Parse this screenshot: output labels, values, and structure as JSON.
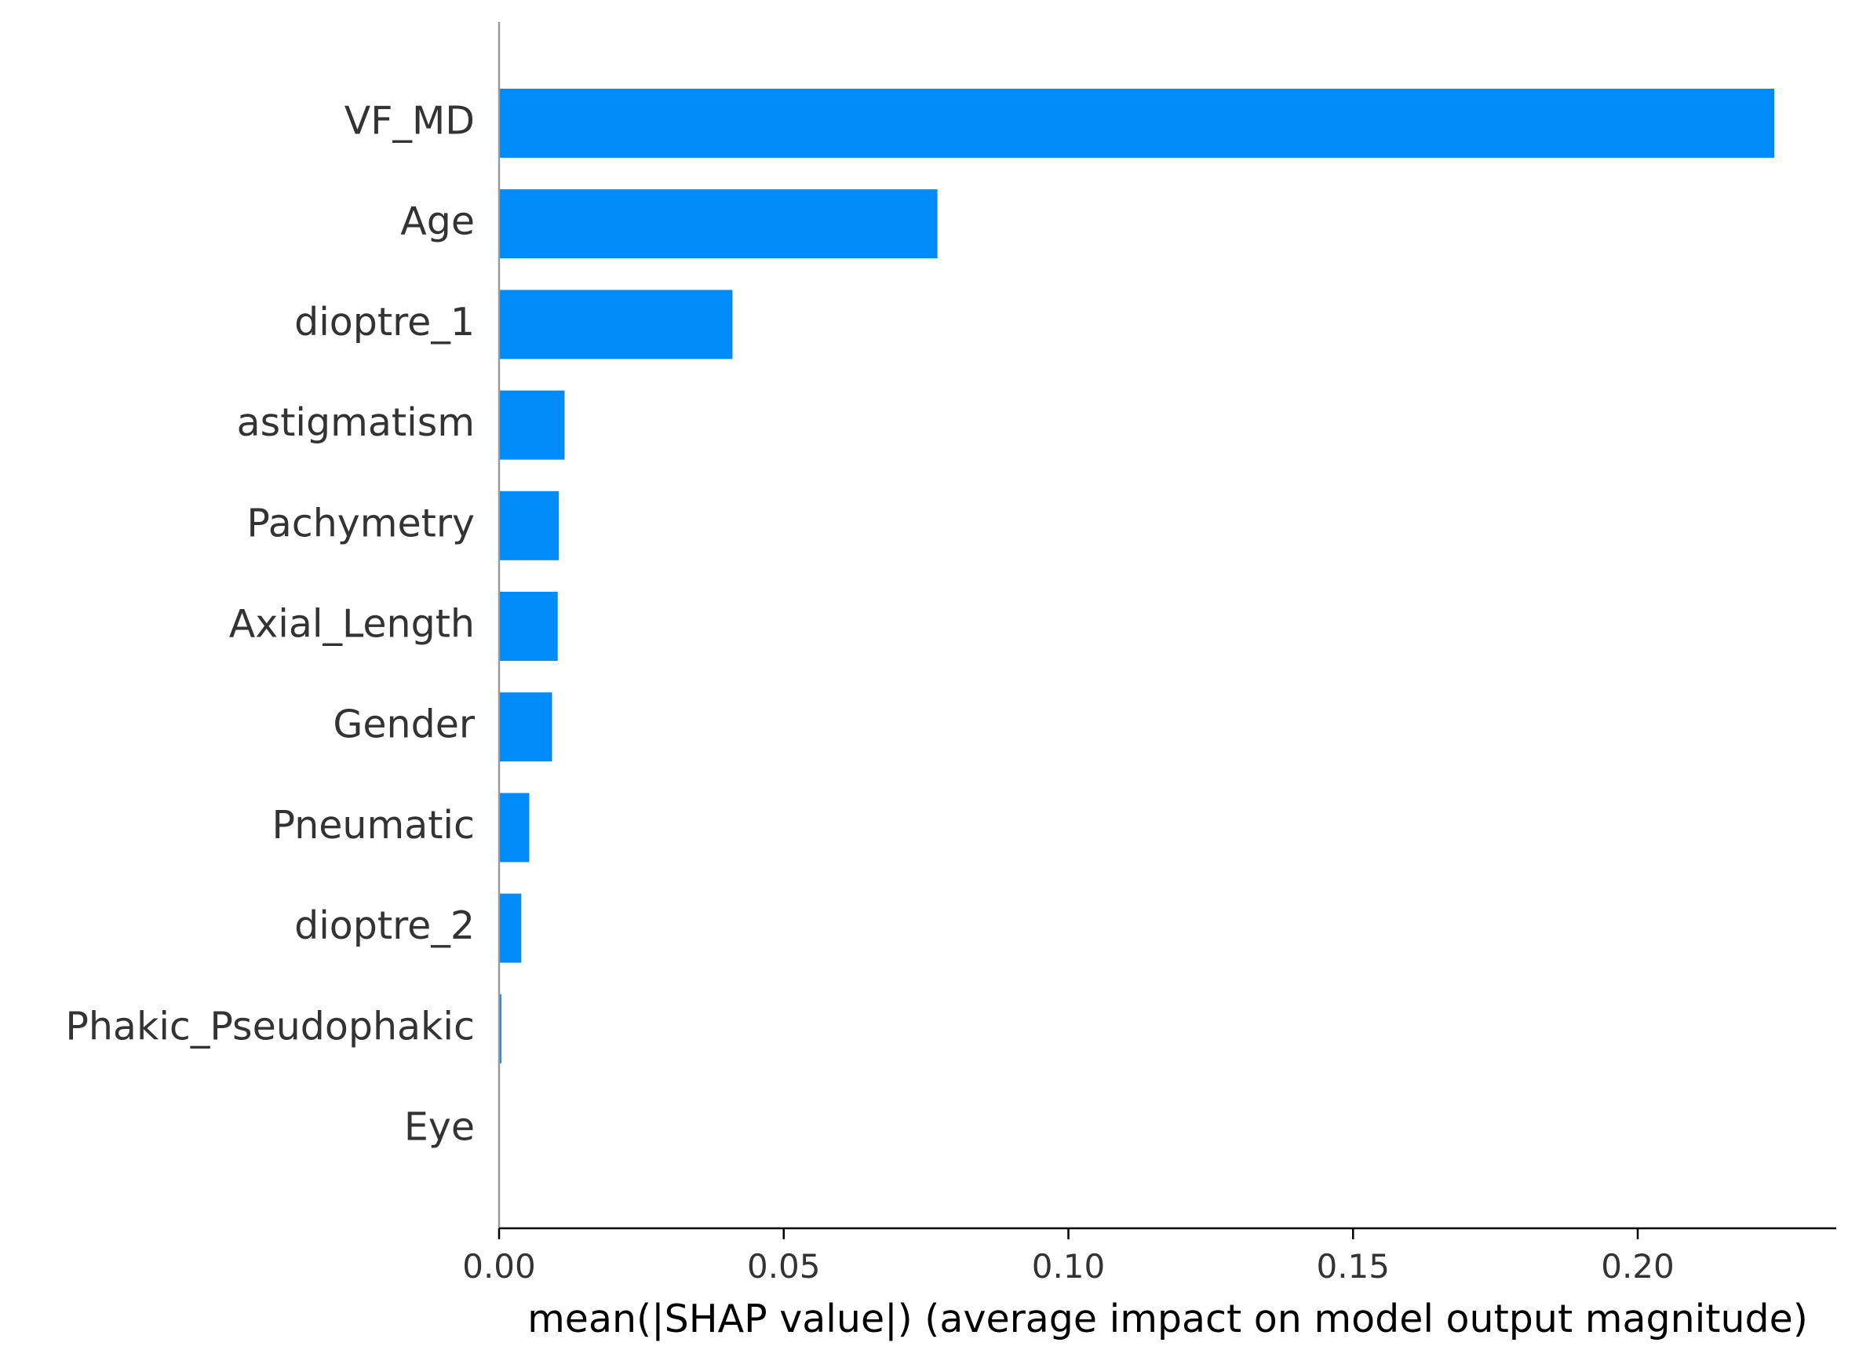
{
  "chart_data": {
    "type": "bar",
    "orientation": "horizontal",
    "categories": [
      "VF_MD",
      "Age",
      "dioptre_1",
      "astigmatism",
      "Pachymetry",
      "Axial_Length",
      "Gender",
      "Pneumatic",
      "dioptre_2",
      "Phakic_Pseudophakic",
      "Eye"
    ],
    "values": [
      0.224,
      0.077,
      0.041,
      0.0115,
      0.0105,
      0.0103,
      0.0093,
      0.0053,
      0.0039,
      0.0004,
      0.0
    ],
    "title": "",
    "xlabel": "mean(|SHAP value|) (average impact on model output magnitude)",
    "ylabel": "",
    "xlim": [
      0.0,
      0.235
    ],
    "xticks": [
      0.0,
      0.05,
      0.1,
      0.15,
      0.2
    ],
    "xtick_labels": [
      "0.00",
      "0.05",
      "0.10",
      "0.15",
      "0.20"
    ],
    "grid": false,
    "legend": "none",
    "bar_color": "#008bfb",
    "axis_color": "#000000",
    "spine_color": "#999999",
    "label_color": "#333333"
  }
}
